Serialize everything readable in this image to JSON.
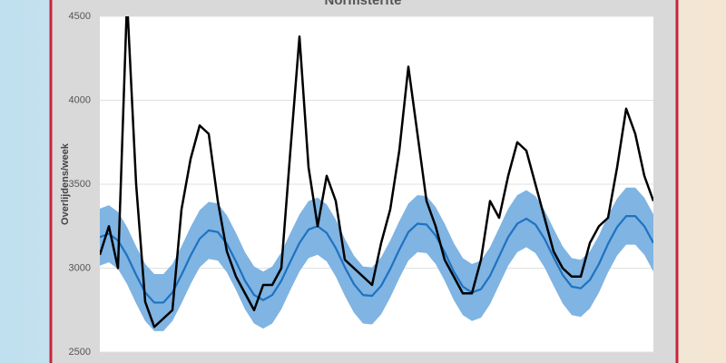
{
  "chart_data": {
    "type": "line",
    "title": "Normsterfte",
    "y_label": "Overlijdens/week",
    "categories": [
      null,
      null,
      null,
      null,
      null,
      null,
      null,
      null,
      null,
      null,
      null,
      null,
      null,
      null,
      null,
      null,
      null,
      null,
      null,
      null,
      null,
      null,
      null,
      null,
      null,
      null,
      null,
      null,
      null,
      null,
      null,
      null,
      null,
      null,
      null,
      null,
      null,
      null,
      null,
      null,
      null,
      null,
      null,
      null,
      null,
      null,
      null,
      null,
      null,
      null,
      null,
      null,
      null,
      null,
      null,
      null,
      null,
      null,
      null,
      null,
      null,
      null
    ],
    "ylim": [
      2500,
      4500
    ],
    "yticks": [
      2500,
      3000,
      3500,
      4000,
      4500
    ],
    "grid": true,
    "band": {
      "color": "#7fb4e3",
      "upper": [
        3355,
        3375,
        3335,
        3245,
        3130,
        3025,
        2965,
        2965,
        3025,
        3130,
        3245,
        3345,
        3395,
        3385,
        3315,
        3210,
        3095,
        3010,
        2980,
        3010,
        3095,
        3210,
        3320,
        3400,
        3420,
        3380,
        3290,
        3175,
        3075,
        3010,
        3005,
        3065,
        3165,
        3280,
        3385,
        3435,
        3430,
        3365,
        3265,
        3150,
        3060,
        3025,
        3045,
        3125,
        3240,
        3355,
        3435,
        3465,
        3430,
        3345,
        3235,
        3130,
        3060,
        3050,
        3100,
        3195,
        3315,
        3415,
        3480,
        3480,
        3420,
        3320
      ],
      "lower": [
        3015,
        3035,
        2995,
        2905,
        2790,
        2685,
        2625,
        2625,
        2685,
        2790,
        2905,
        3005,
        3055,
        3045,
        2975,
        2870,
        2755,
        2670,
        2640,
        2670,
        2755,
        2870,
        2980,
        3060,
        3080,
        3040,
        2950,
        2835,
        2735,
        2670,
        2665,
        2725,
        2825,
        2940,
        3045,
        3095,
        3090,
        3025,
        2925,
        2810,
        2720,
        2685,
        2705,
        2785,
        2900,
        3015,
        3095,
        3125,
        3090,
        3005,
        2895,
        2790,
        2720,
        2710,
        2760,
        2855,
        2975,
        3075,
        3140,
        3140,
        3080,
        2980
      ]
    },
    "series": [
      {
        "color": "#1f72c0",
        "values": [
          3185,
          3205,
          3165,
          3075,
          2960,
          2855,
          2795,
          2795,
          2855,
          2960,
          3075,
          3175,
          3225,
          3215,
          3145,
          3040,
          2925,
          2840,
          2810,
          2840,
          2925,
          3040,
          3150,
          3230,
          3250,
          3210,
          3120,
          3005,
          2905,
          2840,
          2835,
          2895,
          2995,
          3110,
          3215,
          3265,
          3260,
          3195,
          3095,
          2980,
          2890,
          2855,
          2875,
          2955,
          3070,
          3185,
          3265,
          3295,
          3260,
          3175,
          3065,
          2960,
          2890,
          2880,
          2930,
          3025,
          3145,
          3245,
          3310,
          3310,
          3250,
          3150
        ]
      },
      {
        "color": "#000000",
        "values": [
          3080,
          3250,
          3000,
          4600,
          3500,
          2800,
          2650,
          2700,
          2750,
          3350,
          3650,
          3850,
          3800,
          3400,
          3100,
          2950,
          2850,
          2750,
          2900,
          2900,
          3000,
          3700,
          4380,
          3600,
          3250,
          3550,
          3400,
          3050,
          3000,
          2950,
          2900,
          3150,
          3350,
          3700,
          4200,
          3800,
          3400,
          3250,
          3050,
          2950,
          2850,
          2850,
          3050,
          3400,
          3300,
          3550,
          3750,
          3700,
          3500,
          3300,
          3100,
          3000,
          2950,
          2950,
          3150,
          3250,
          3300,
          3600,
          3950,
          3800,
          3550,
          3400
        ]
      }
    ]
  }
}
